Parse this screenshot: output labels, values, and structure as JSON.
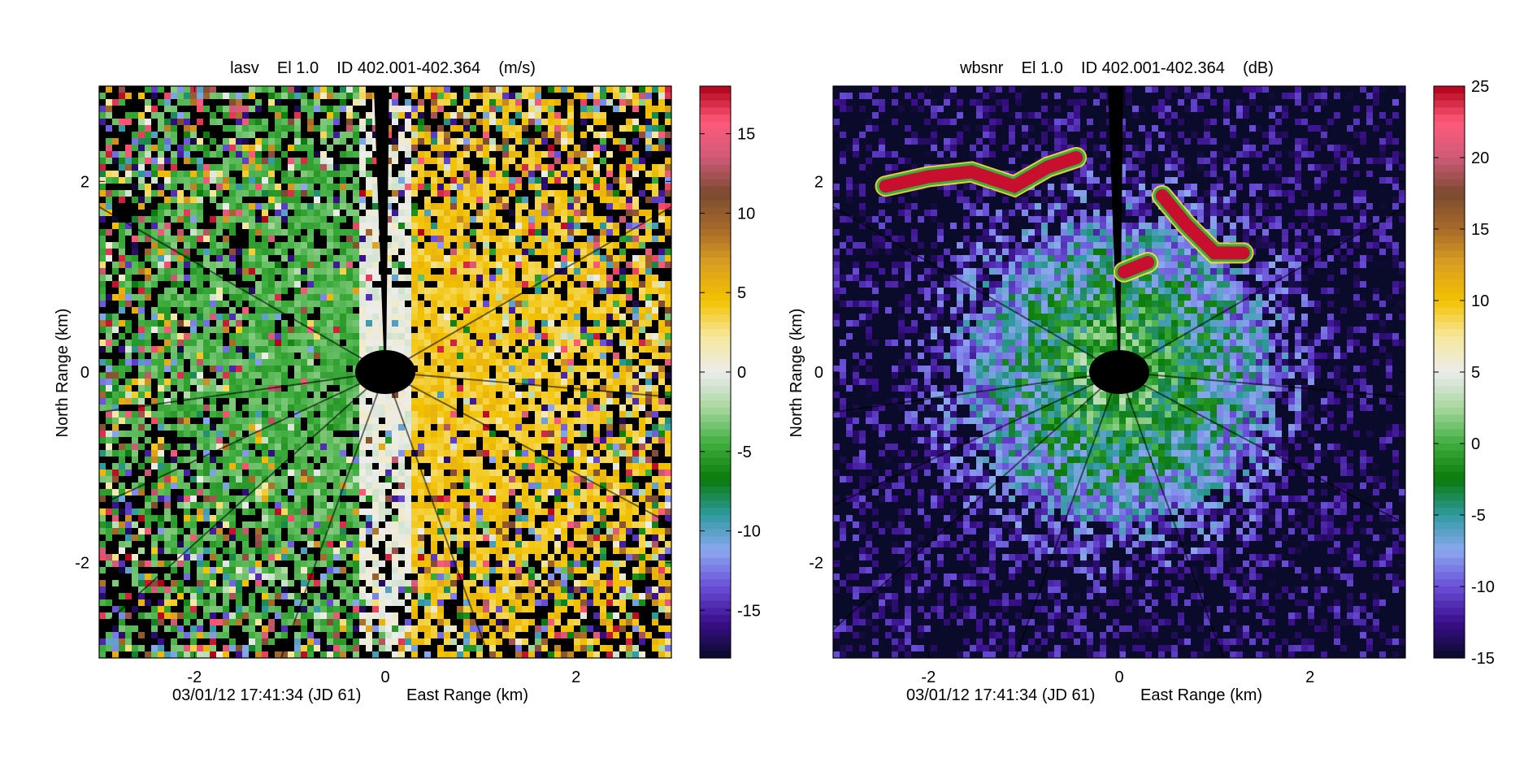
{
  "chart_data": [
    {
      "type": "heatmap",
      "title": "lasv    El 1.0    ID 402.001-402.364    (m/s)",
      "xlabel": "East Range (km)",
      "ylabel": "North Range (km)",
      "footer": "03/01/12 17:41:34 (JD 61)",
      "xlim": [
        -3,
        3
      ],
      "ylim": [
        -3,
        3
      ],
      "x_ticks": [
        -2,
        0,
        2
      ],
      "y_ticks": [
        2,
        0,
        -2
      ],
      "colorbar": {
        "range": [
          -18,
          18
        ],
        "ticks": [
          15,
          10,
          5,
          0,
          -5,
          -10,
          -15
        ],
        "palette": [
          "#0a0a2a",
          "#3a0f8c",
          "#6a4fd8",
          "#8ca8f0",
          "#2f9aa0",
          "#0a7a0a",
          "#3fae3f",
          "#a8d8a0",
          "#ececec",
          "#f6e79a",
          "#f2c200",
          "#dca020",
          "#a66a2a",
          "#7a4a30",
          "#d05a78",
          "#ff5a7a",
          "#b00018"
        ]
      },
      "field": "velocity"
    },
    {
      "type": "heatmap",
      "title": "wbsnr    El 1.0    ID 402.001-402.364    (dB)",
      "xlabel": "East Range (km)",
      "ylabel": "North Range (km)",
      "footer": "03/01/12 17:41:34 (JD 61)",
      "xlim": [
        -3,
        3
      ],
      "ylim": [
        -3,
        3
      ],
      "x_ticks": [
        -2,
        0,
        2
      ],
      "y_ticks": [
        2,
        0,
        -2
      ],
      "colorbar": {
        "range": [
          -15,
          25
        ],
        "ticks": [
          25,
          20,
          15,
          10,
          5,
          0,
          -5,
          -10,
          -15
        ],
        "palette": [
          "#0a0a2a",
          "#3a0f8c",
          "#6a4fd8",
          "#8ca8f0",
          "#2f9aa0",
          "#0a7a0a",
          "#3fae3f",
          "#a8d8a0",
          "#ececec",
          "#f6e79a",
          "#f2c200",
          "#dca020",
          "#a66a2a",
          "#7a4a30",
          "#d05a78",
          "#ff5a7a",
          "#b00018"
        ]
      },
      "field": "snr"
    }
  ]
}
